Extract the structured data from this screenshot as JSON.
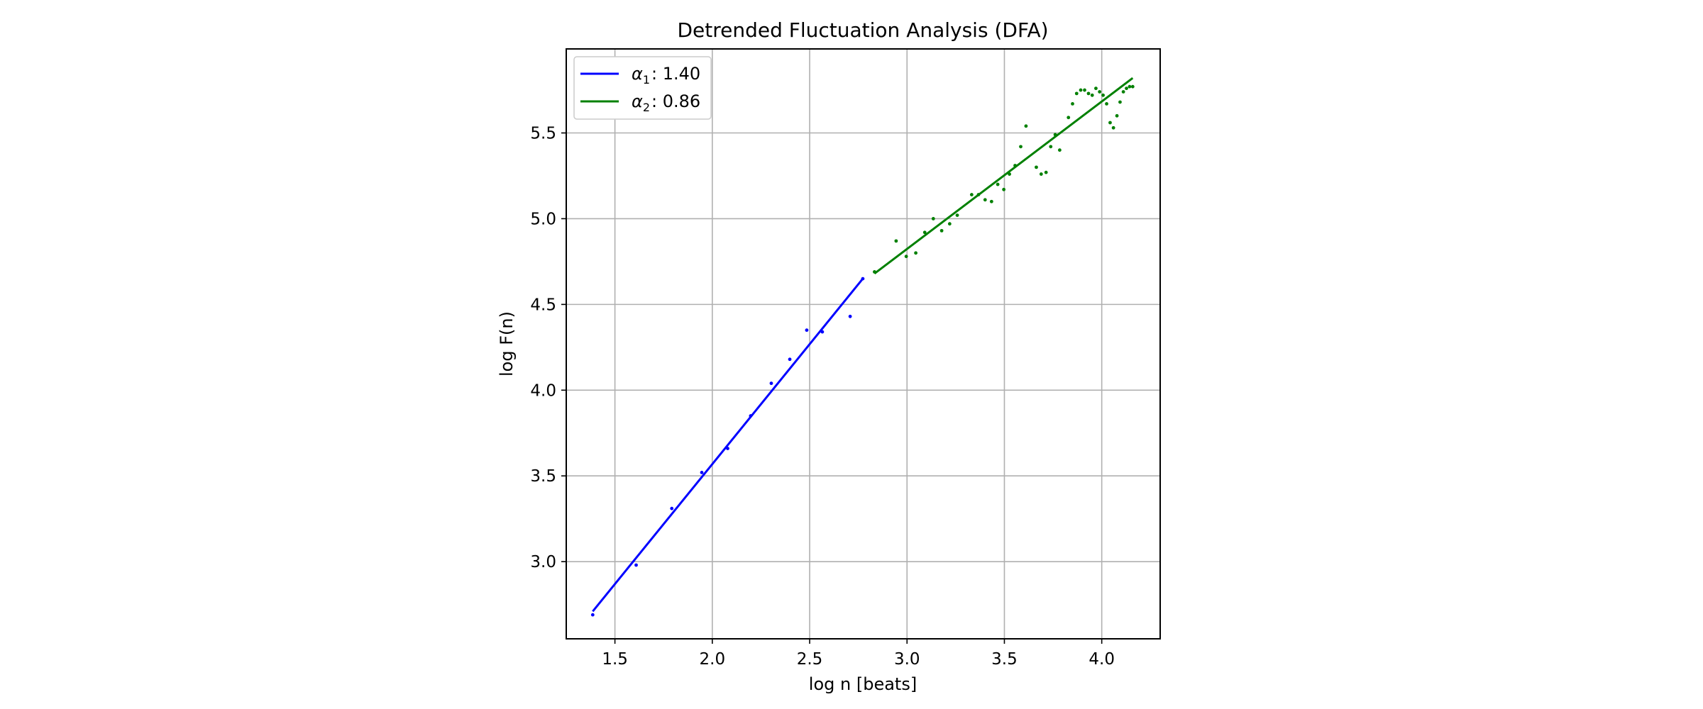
{
  "chart_data": {
    "type": "scatter",
    "title": "Detrended Fluctuation Analysis (DFA)",
    "xlabel": "log n [beats]",
    "ylabel": "log F(n)",
    "xlim": [
      1.25,
      4.3
    ],
    "ylim": [
      2.55,
      5.99
    ],
    "xticks": [
      1.5,
      2.0,
      2.5,
      3.0,
      3.5,
      4.0
    ],
    "xtick_labels": [
      "1.5",
      "2.0",
      "2.5",
      "3.0",
      "3.5",
      "4.0"
    ],
    "yticks": [
      3.0,
      3.5,
      4.0,
      4.5,
      5.0,
      5.5
    ],
    "ytick_labels": [
      "3.0",
      "3.5",
      "4.0",
      "4.5",
      "5.0",
      "5.5"
    ],
    "grid": true,
    "legend": {
      "position": "top-left",
      "entries": [
        {
          "symbol": "α",
          "subscript": "1",
          "text": ": 1.40",
          "color": "#0000ff"
        },
        {
          "symbol": "α",
          "subscript": "2",
          "text": ": 0.86",
          "color": "#008000"
        }
      ]
    },
    "series": [
      {
        "color": "#0000ff",
        "points": [
          [
            1.386,
            2.69
          ],
          [
            1.609,
            2.98
          ],
          [
            1.792,
            3.31
          ],
          [
            1.946,
            3.52
          ],
          [
            2.079,
            3.66
          ],
          [
            2.197,
            3.85
          ],
          [
            2.303,
            4.04
          ],
          [
            2.398,
            4.18
          ],
          [
            2.485,
            4.35
          ],
          [
            2.565,
            4.34
          ],
          [
            2.708,
            4.43
          ],
          [
            2.773,
            4.65
          ]
        ],
        "fit": {
          "x": [
            1.386,
            2.773
          ],
          "y": [
            2.71,
            4.65
          ]
        }
      },
      {
        "color": "#008000",
        "points": [
          [
            2.833,
            4.69
          ],
          [
            2.944,
            4.87
          ],
          [
            2.996,
            4.78
          ],
          [
            3.045,
            4.8
          ],
          [
            3.091,
            4.92
          ],
          [
            3.135,
            5.0
          ],
          [
            3.178,
            4.93
          ],
          [
            3.219,
            4.97
          ],
          [
            3.258,
            5.02
          ],
          [
            3.332,
            5.14
          ],
          [
            3.367,
            5.14
          ],
          [
            3.401,
            5.11
          ],
          [
            3.434,
            5.1
          ],
          [
            3.466,
            5.2
          ],
          [
            3.497,
            5.17
          ],
          [
            3.526,
            5.26
          ],
          [
            3.555,
            5.31
          ],
          [
            3.584,
            5.42
          ],
          [
            3.611,
            5.54
          ],
          [
            3.664,
            5.3
          ],
          [
            3.689,
            5.26
          ],
          [
            3.714,
            5.27
          ],
          [
            3.738,
            5.42
          ],
          [
            3.761,
            5.49
          ],
          [
            3.784,
            5.4
          ],
          [
            3.829,
            5.59
          ],
          [
            3.85,
            5.67
          ],
          [
            3.871,
            5.73
          ],
          [
            3.892,
            5.75
          ],
          [
            3.912,
            5.75
          ],
          [
            3.932,
            5.73
          ],
          [
            3.951,
            5.72
          ],
          [
            3.97,
            5.76
          ],
          [
            3.989,
            5.74
          ],
          [
            4.007,
            5.72
          ],
          [
            4.025,
            5.67
          ],
          [
            4.043,
            5.56
          ],
          [
            4.06,
            5.53
          ],
          [
            4.078,
            5.6
          ],
          [
            4.094,
            5.68
          ],
          [
            4.111,
            5.74
          ],
          [
            4.127,
            5.76
          ],
          [
            4.143,
            5.77
          ],
          [
            4.159,
            5.77
          ]
        ],
        "fit": {
          "x": [
            2.833,
            4.159
          ],
          "y": [
            4.68,
            5.82
          ]
        }
      }
    ]
  }
}
